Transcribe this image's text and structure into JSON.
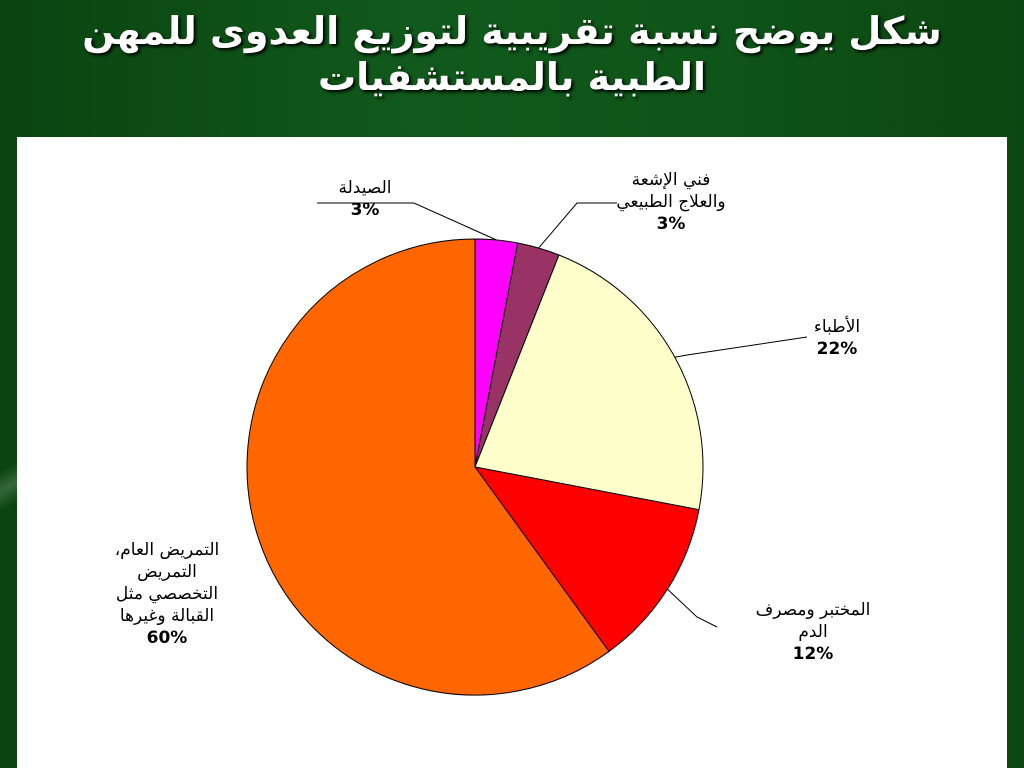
{
  "slide": {
    "title_line1": "شكل يوضح نسبة تقريبية لتوزيع العدوى للمهن",
    "title_line2": "الطبية بالمستشفيات"
  },
  "chart_data": {
    "type": "pie",
    "slices": [
      {
        "label_lines": [
          "الصيدلة"
        ],
        "value": 3,
        "value_label": "3%",
        "color": "#ff00ff"
      },
      {
        "label_lines": [
          "فني الإشعة",
          "والعلاج الطبيعي"
        ],
        "value": 3,
        "value_label": "3%",
        "color": "#993366"
      },
      {
        "label_lines": [
          "الأطباء"
        ],
        "value": 22,
        "value_label": "22%",
        "color": "#ffffcc"
      },
      {
        "label_lines": [
          "المختبر ومصرف",
          "الدم"
        ],
        "value": 12,
        "value_label": "12%",
        "color": "#ff0000"
      },
      {
        "label_lines": [
          "التمريض العام،",
          "التمريض",
          "التخصصي مثل",
          "القبالة وغيرها"
        ],
        "value": 60,
        "value_label": "60%",
        "color": "#ff6600"
      }
    ]
  }
}
